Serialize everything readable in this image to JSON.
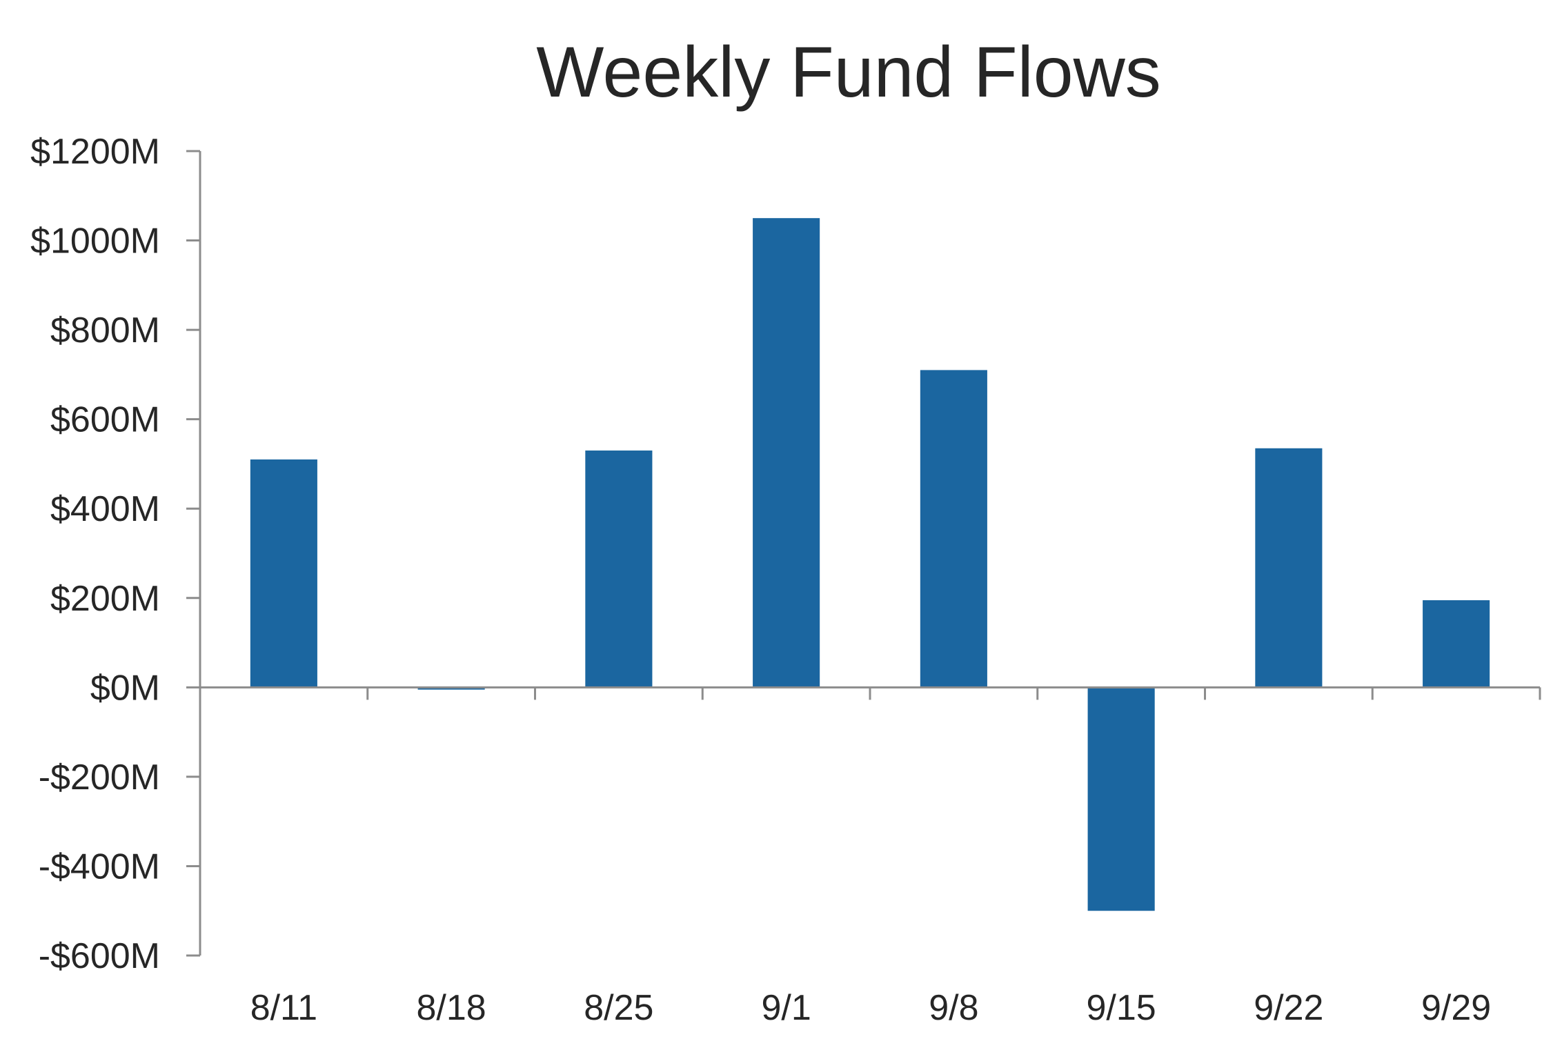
{
  "chart_data": {
    "type": "bar",
    "title": "Weekly Fund Flows",
    "xlabel": "",
    "ylabel": "",
    "categories": [
      "8/11",
      "8/18",
      "8/25",
      "9/1",
      "9/8",
      "9/15",
      "9/22",
      "9/29"
    ],
    "series": [
      {
        "values": [
          510,
          -5,
          530,
          1050,
          710,
          -500,
          535,
          195
        ],
        "color": "#1b66a0"
      }
    ],
    "ylim": [
      -600,
      1200
    ],
    "yticks": [
      1200,
      1000,
      800,
      600,
      400,
      200,
      0,
      -200,
      -400,
      -600
    ],
    "ytick_labels": [
      "$1200M",
      "$1000M",
      "$800M",
      "$600M",
      "$400M",
      "$200M",
      "$0M",
      "-$200M",
      "-$400M",
      "-$600M"
    ],
    "grid": false,
    "legend": "none"
  }
}
